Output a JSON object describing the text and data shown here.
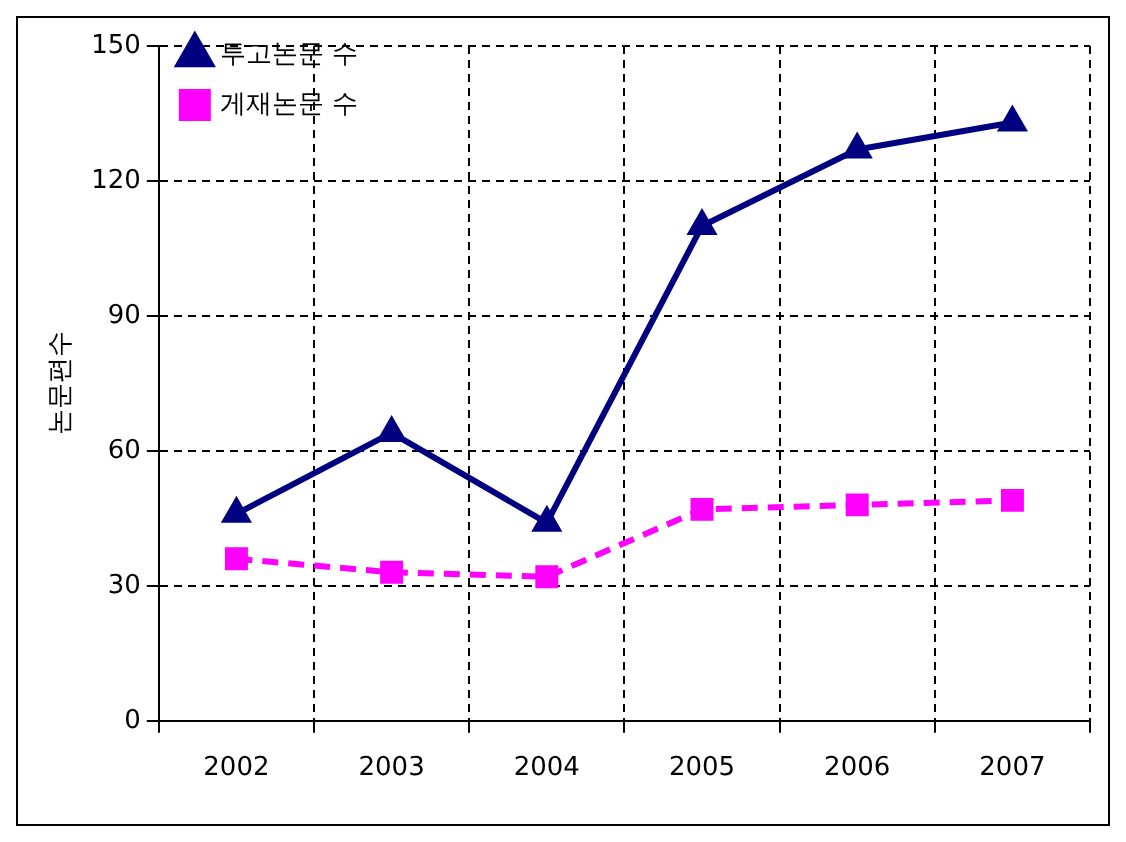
{
  "chart_data": {
    "type": "line",
    "ylabel": "논문편수",
    "categories": [
      "2002",
      "2003",
      "2004",
      "2005",
      "2006",
      "2007"
    ],
    "series": [
      {
        "name": "투고논문 수",
        "color": "#000080",
        "values": [
          46,
          64,
          44,
          110,
          127,
          133
        ],
        "marker": "triangle",
        "line_style": "solid"
      },
      {
        "name": "게재논문 수",
        "color": "#ff00ff",
        "values": [
          36,
          33,
          32,
          47,
          48,
          49
        ],
        "marker": "square",
        "line_style": "dashed"
      }
    ],
    "ylim": [
      0,
      150
    ],
    "yticks": [
      0,
      30,
      60,
      90,
      120,
      150
    ],
    "grid": true,
    "legend": "top left"
  }
}
